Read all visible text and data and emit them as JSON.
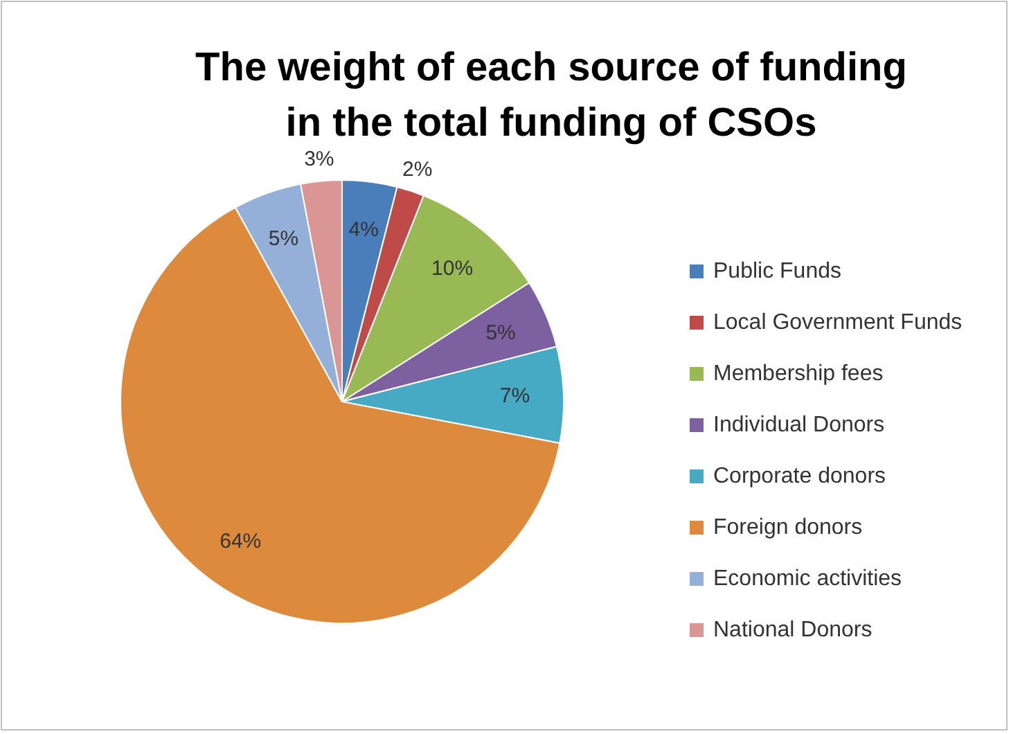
{
  "chart_data": {
    "type": "pie",
    "title": "The weight of each source of funding\nin the total funding of CSOs",
    "categories": [
      "Public Funds",
      "Local Government Funds",
      "Membership fees",
      "Individual Donors",
      "Corporate donors",
      "Foreign donors",
      "Economic activities",
      "National Donors"
    ],
    "values": [
      4,
      2,
      10,
      5,
      7,
      64,
      5,
      3
    ],
    "colors": [
      "#4a7ebb",
      "#be4b48",
      "#98b954",
      "#7d60a0",
      "#46aac5",
      "#dd8a3d",
      "#95b0d8",
      "#d99694"
    ],
    "value_labels": [
      "4%",
      "2%",
      "10%",
      "5%",
      "7%",
      "64%",
      "5%",
      "3%"
    ],
    "legend": "right"
  }
}
